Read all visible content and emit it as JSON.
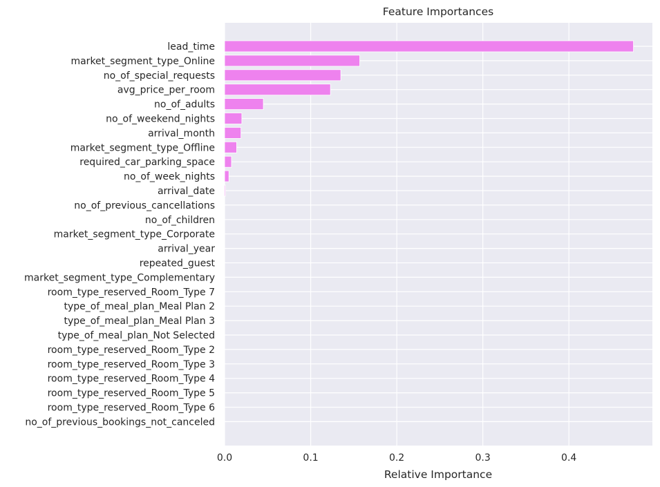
{
  "chart_data": {
    "type": "bar",
    "orientation": "horizontal",
    "title": "Feature Importances",
    "xlabel": "Relative Importance",
    "ylabel": "",
    "xlim": [
      0,
      0.497
    ],
    "xticks": [
      0.0,
      0.1,
      0.2,
      0.3,
      0.4
    ],
    "xtick_labels": [
      "0.0",
      "0.1",
      "0.2",
      "0.3",
      "0.4"
    ],
    "grid": true,
    "legend": null,
    "categories": [
      "lead_time",
      "market_segment_type_Online",
      "no_of_special_requests",
      "avg_price_per_room",
      "no_of_adults",
      "no_of_weekend_nights",
      "arrival_month",
      "market_segment_type_Offline",
      "required_car_parking_space",
      "no_of_week_nights",
      "arrival_date",
      "no_of_previous_cancellations",
      "no_of_children",
      "market_segment_type_Corporate",
      "arrival_year",
      "repeated_guest",
      "market_segment_type_Complementary",
      "room_type_reserved_Room_Type 7",
      "type_of_meal_plan_Meal Plan 2",
      "type_of_meal_plan_Meal Plan 3",
      "type_of_meal_plan_Not Selected",
      "room_type_reserved_Room_Type 2",
      "room_type_reserved_Room_Type 3",
      "room_type_reserved_Room_Type 4",
      "room_type_reserved_Room_Type 5",
      "room_type_reserved_Room_Type 6",
      "no_of_previous_bookings_not_canceled"
    ],
    "values": [
      0.475,
      0.157,
      0.135,
      0.123,
      0.045,
      0.02,
      0.019,
      0.014,
      0.008,
      0.005,
      0.001,
      0.0,
      0.0,
      0.0,
      0.0,
      0.0,
      0.0,
      0.0,
      0.0,
      0.0,
      0.0,
      0.0,
      0.0,
      0.0,
      0.0,
      0.0,
      0.0
    ]
  },
  "colors": {
    "bar": "#ee82ee",
    "plot_background": "#eaeaf2",
    "grid": "#ffffff",
    "text": "#262626"
  }
}
